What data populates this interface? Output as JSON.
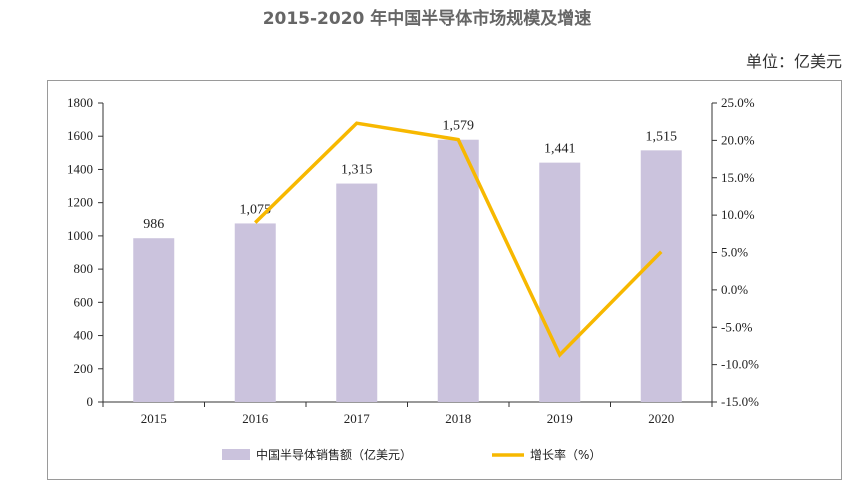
{
  "title": "2015-2020 年中国半导体市场规模及增速",
  "unit_label": "单位：亿美元",
  "chart_data": {
    "type": "bar+line",
    "categories": [
      "2015",
      "2016",
      "2017",
      "2018",
      "2019",
      "2020"
    ],
    "series": [
      {
        "name": "中国半导体销售额（亿美元）",
        "type": "bar",
        "axis": "left",
        "values": [
          986,
          1075,
          1315,
          1579,
          1441,
          1515
        ],
        "labels": [
          "986",
          "1,075",
          "1,315",
          "1,579",
          "1,441",
          "1,515"
        ],
        "color": "#cbc3dd"
      },
      {
        "name": "增长率（%）",
        "type": "line",
        "axis": "right",
        "values": [
          null,
          9.0,
          22.3,
          20.1,
          -8.7,
          5.1
        ],
        "color": "#f7b800"
      }
    ],
    "y_left": {
      "min": 0,
      "max": 1800,
      "ticks": [
        "0",
        "200",
        "400",
        "600",
        "800",
        "1000",
        "1200",
        "1400",
        "1600",
        "1800"
      ]
    },
    "y_right": {
      "min": -15,
      "max": 25,
      "ticks": [
        "-15.0%",
        "-10.0%",
        "-5.0%",
        "0.0%",
        "5.0%",
        "10.0%",
        "15.0%",
        "20.0%",
        "25.0%"
      ]
    },
    "legend_position": "bottom"
  }
}
